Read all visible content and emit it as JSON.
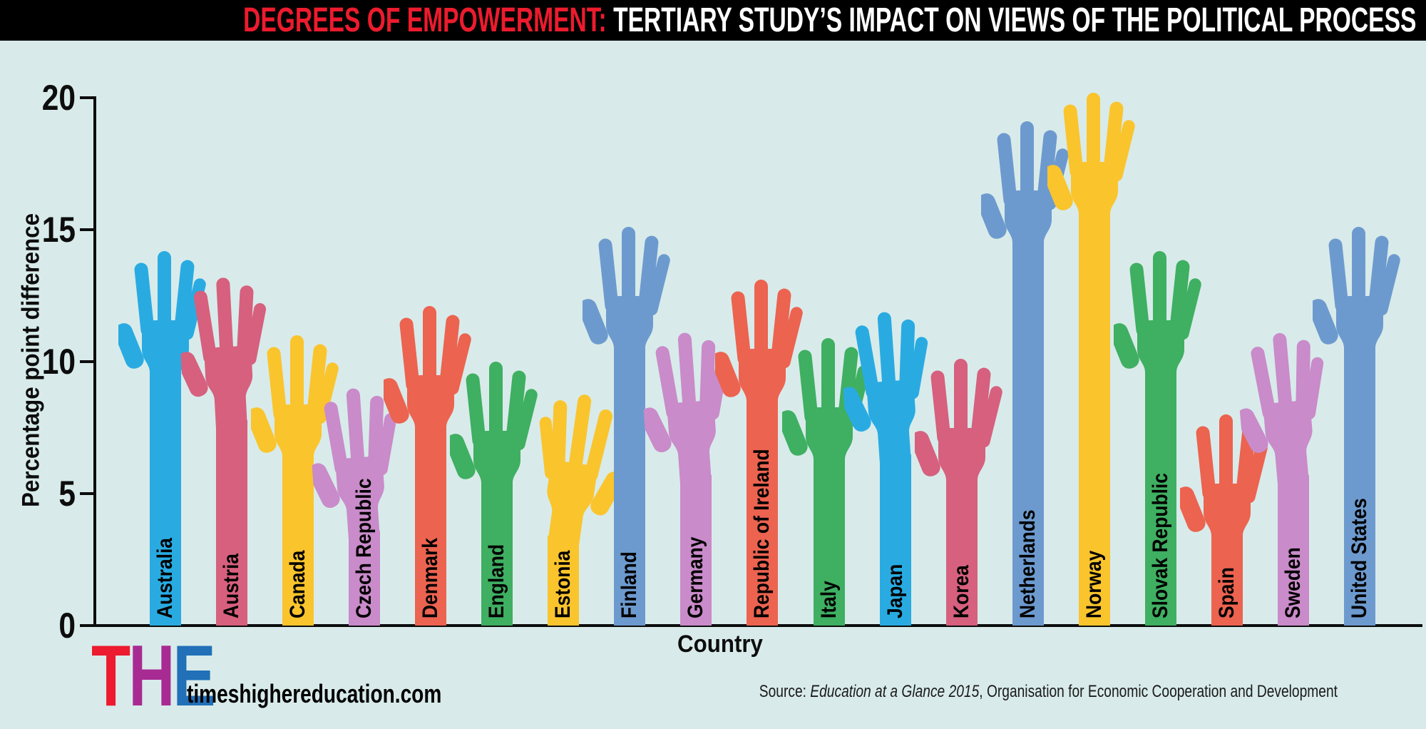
{
  "title": {
    "highlight": "DEGREES OF EMPOWERMENT:",
    "rest": " TERTIARY STUDY’S IMPACT ON VIEWS OF THE POLITICAL PROCESS"
  },
  "chart_data": {
    "type": "bar",
    "title": "Degrees of empowerment: tertiary study's impact on views of the political process",
    "xlabel": "Country",
    "ylabel": "Percentage point difference",
    "ylim": [
      0,
      20
    ],
    "yticks": [
      0,
      5,
      10,
      15,
      20
    ],
    "grid": false,
    "legend": "none",
    "bar_style": "raised-hand silhouettes",
    "categories": [
      "Australia",
      "Austria",
      "Canada",
      "Czech Republic",
      "Denmark",
      "England",
      "Estonia",
      "Finland",
      "Germany",
      "Republic of Ireland",
      "Italy",
      "Japan",
      "Korea",
      "Netherlands",
      "Norway",
      "Slovak Republic",
      "Spain",
      "Sweden",
      "United States"
    ],
    "values": [
      14.2,
      13.2,
      11.0,
      9.0,
      12.1,
      10.0,
      8.8,
      15.1,
      11.1,
      13.1,
      10.9,
      11.9,
      10.1,
      19.1,
      20.2,
      14.2,
      8.0,
      11.1,
      15.1
    ],
    "colors": [
      "#29abe2",
      "#d6607e",
      "#fac42d",
      "#c98bc9",
      "#ec6350",
      "#3faf62",
      "#fac42d",
      "#6d9ace",
      "#c98bc9",
      "#ec6350",
      "#3faf62",
      "#29abe2",
      "#d6607e",
      "#6d9ace",
      "#fac42d",
      "#3faf62",
      "#ec6350",
      "#c98bc9",
      "#6d9ace"
    ],
    "tilts": [
      0,
      -3,
      0,
      -4,
      0,
      0,
      -8,
      0,
      -4,
      0,
      0,
      -4,
      0,
      0,
      0,
      0,
      0,
      -5,
      0
    ],
    "mirrored_indexes": [
      6
    ],
    "axis_color": "#0d0d0d"
  },
  "footer": {
    "logo_letters": [
      {
        "char": "T",
        "color": "#ed1b2f"
      },
      {
        "char": "H",
        "color": "#a82b93"
      },
      {
        "char": "E",
        "color": "#2170b8"
      }
    ],
    "site": "timeshighereducation.com",
    "source_prefix": "Source: ",
    "source_italic": "Education at a Glance 2015",
    "source_rest": ", Organisation for Economic Cooperation and Development"
  },
  "theme": {
    "background": "#d8ebea",
    "titlebar_bg": "#000000",
    "title_highlight_color": "#ed1b2e",
    "title_rest_color": "#ffffff"
  }
}
